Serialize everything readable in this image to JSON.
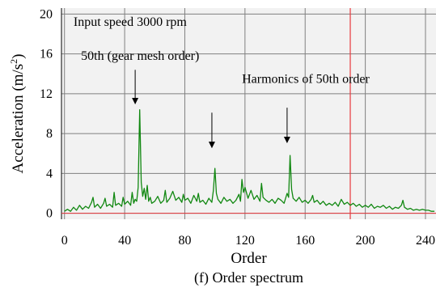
{
  "caption": "(f) Order spectrum",
  "colors": {
    "plot_background": "#f2f2f2",
    "grid": "#808080",
    "signal": "#118811",
    "marker": "#e8383d",
    "baseline": "#e8383d"
  },
  "chart_data": {
    "type": "line",
    "xlabel": "Order",
    "ylabel_prefix": "Acceleration (m/s",
    "ylabel_sup": "2",
    "ylabel_suffix": ")",
    "xlim": [
      -2,
      247
    ],
    "ylim": [
      -0.6,
      20.6
    ],
    "xticks": [
      0,
      40,
      80,
      120,
      160,
      200,
      240
    ],
    "yticks": [
      0,
      4,
      8,
      12,
      16,
      20
    ],
    "grid": true,
    "vertical_marker_x": 190,
    "series": [
      {
        "color": "#118811",
        "x": [
          0,
          2,
          4,
          6,
          8,
          10,
          12,
          14,
          16,
          18,
          19,
          20,
          22,
          24,
          26,
          27,
          28,
          30,
          32,
          33,
          34,
          36,
          38,
          39,
          40,
          42,
          44,
          45,
          46,
          47,
          48,
          49,
          50,
          51,
          52,
          53,
          54,
          55,
          56,
          57,
          58,
          60,
          62,
          64,
          66,
          67,
          68,
          70,
          72,
          74,
          76,
          78,
          79,
          80,
          82,
          84,
          86,
          88,
          89,
          90,
          92,
          94,
          96,
          98,
          99,
          100,
          101,
          102,
          104,
          106,
          108,
          110,
          112,
          114,
          116,
          117,
          118,
          119,
          120,
          122,
          124,
          126,
          128,
          130,
          131,
          132,
          134,
          136,
          138,
          140,
          142,
          144,
          146,
          148,
          149,
          150,
          151,
          152,
          154,
          156,
          158,
          160,
          162,
          164,
          165,
          166,
          168,
          170,
          172,
          174,
          176,
          178,
          180,
          182,
          184,
          186,
          188,
          190,
          192,
          194,
          196,
          198,
          200,
          202,
          204,
          206,
          208,
          210,
          212,
          214,
          216,
          218,
          220,
          222,
          224,
          225,
          226,
          228,
          230,
          232,
          234,
          236,
          238,
          240,
          242,
          244,
          246
        ],
        "y": [
          0.2,
          0.4,
          0.2,
          0.6,
          0.3,
          0.8,
          0.4,
          0.7,
          0.5,
          1.1,
          1.6,
          0.6,
          0.9,
          0.5,
          1.0,
          1.5,
          0.7,
          0.9,
          0.6,
          2.1,
          0.8,
          1.0,
          0.7,
          1.6,
          0.9,
          1.2,
          0.8,
          2.1,
          1.0,
          1.4,
          1.2,
          2.6,
          10.4,
          3.1,
          1.7,
          2.5,
          1.4,
          2.8,
          1.2,
          1.6,
          1.0,
          1.2,
          1.7,
          1.0,
          1.3,
          2.3,
          1.1,
          1.5,
          2.2,
          1.3,
          1.6,
          1.1,
          1.9,
          1.3,
          1.5,
          1.0,
          1.8,
          1.2,
          2.0,
          1.1,
          1.3,
          0.9,
          1.5,
          1.1,
          2.3,
          4.5,
          2.0,
          1.4,
          1.0,
          1.6,
          1.2,
          1.4,
          1.0,
          1.3,
          1.9,
          1.2,
          3.4,
          2.1,
          2.6,
          1.5,
          2.3,
          1.4,
          1.8,
          1.2,
          3.0,
          1.6,
          1.3,
          1.1,
          1.4,
          1.0,
          1.5,
          1.3,
          1.0,
          2.0,
          1.6,
          5.8,
          2.4,
          1.5,
          1.2,
          1.6,
          1.1,
          1.3,
          1.0,
          1.4,
          1.8,
          1.1,
          1.3,
          0.9,
          1.2,
          0.8,
          1.0,
          0.8,
          1.1,
          0.7,
          1.4,
          0.9,
          1.1,
          0.8,
          1.0,
          0.7,
          0.9,
          0.6,
          0.8,
          0.6,
          0.9,
          0.5,
          0.7,
          0.6,
          0.8,
          0.5,
          0.7,
          0.4,
          0.6,
          0.5,
          0.8,
          1.3,
          0.6,
          0.4,
          0.5,
          0.3,
          0.4,
          0.3,
          0.4,
          0.3,
          0.3,
          0.2,
          0.2
        ]
      }
    ],
    "annotations": [
      {
        "text": "Input speed 3000 rpm",
        "x": 6,
        "y": 18.8
      },
      {
        "text": "50th (gear mesh order)",
        "x": 11,
        "y": 15.4
      },
      {
        "text": "Harmonics of 50th order",
        "x": 118,
        "y": 13.1
      }
    ],
    "arrows": [
      {
        "x": 47,
        "y_start": 14.4,
        "y_end": 11.0
      },
      {
        "x": 98,
        "y_start": 10.1,
        "y_end": 6.6
      },
      {
        "x": 148,
        "y_start": 10.6,
        "y_end": 7.1
      }
    ]
  }
}
